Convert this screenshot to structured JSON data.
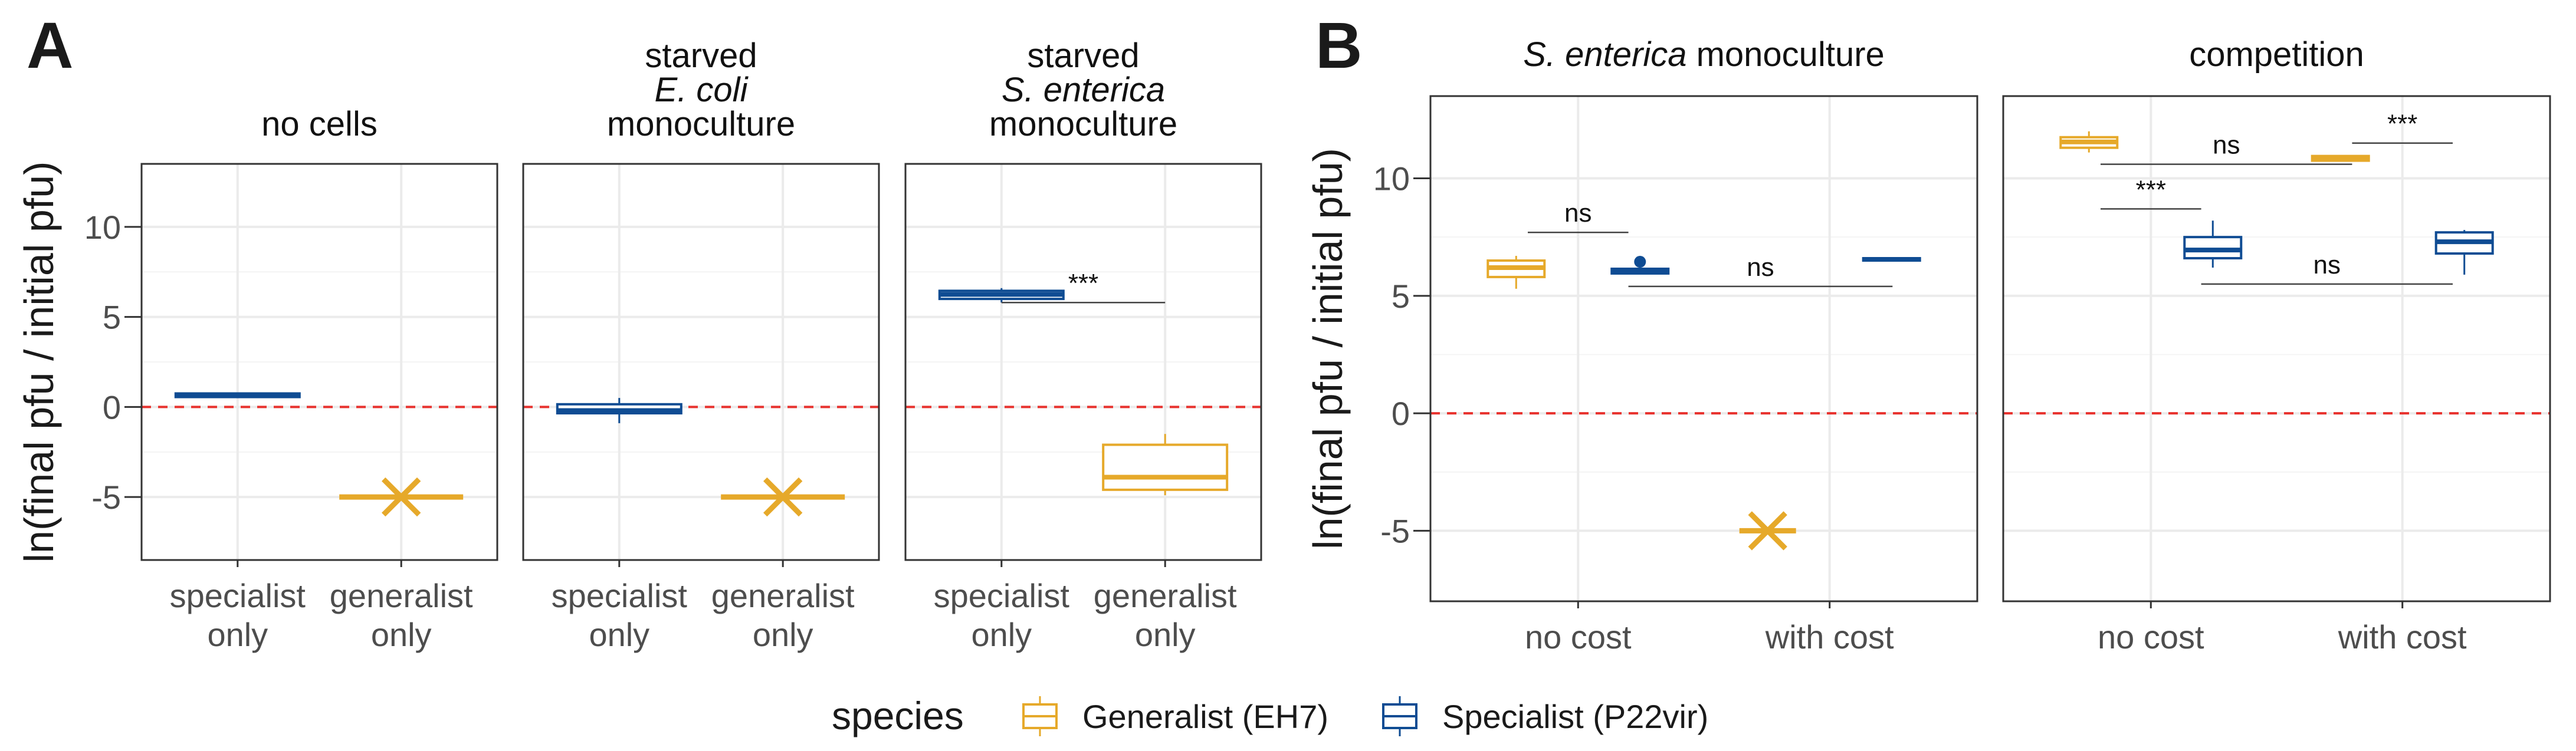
{
  "figure": {
    "panel_labels": [
      "A",
      "B"
    ],
    "ylabel": "ln(final pfu / initial pfu)",
    "legend_title": "species",
    "colors": {
      "generalist": "#E6A92A",
      "specialist": "#0F4C93",
      "baseline": "#E8322E",
      "grid": "#EBEBEB",
      "frame": "#333333"
    },
    "legend": [
      {
        "name": "Generalist (EH7)",
        "color": "#E6A92A",
        "icon": "boxplot-key"
      },
      {
        "name": "Specialist (P22vir)",
        "color": "#0F4C93",
        "icon": "boxplot-key"
      }
    ]
  },
  "chart_data": [
    {
      "type": "boxplot",
      "panel": "A",
      "facets": [
        {
          "strip": [
            "no cells"
          ],
          "italic_line": -1
        },
        {
          "strip": [
            "starved",
            "E. coli",
            "monoculture"
          ],
          "italic_line": 1
        },
        {
          "strip": [
            "starved",
            "S. enterica",
            "monoculture"
          ],
          "italic_line": 1
        }
      ],
      "categories": [
        [
          "specialist",
          "only"
        ],
        [
          "generalist",
          "only"
        ]
      ],
      "ylim": [
        -8.5,
        13.5
      ],
      "yticks": [
        -5,
        0,
        5,
        10
      ],
      "baseline": 0,
      "grid": true,
      "boxes": [
        {
          "facet": 0,
          "x": 0,
          "species": "specialist",
          "q1": 0.55,
          "median": 0.65,
          "q3": 0.75,
          "lo": 0.55,
          "hi": 0.75
        },
        {
          "facet": 0,
          "x": 1,
          "species": "generalist",
          "q1": -5,
          "median": -5,
          "q3": -5,
          "lo": -5,
          "hi": -5,
          "marker": "x"
        },
        {
          "facet": 1,
          "x": 0,
          "species": "specialist",
          "q1": -0.35,
          "median": -0.2,
          "q3": 0.15,
          "lo": -0.9,
          "hi": 0.5
        },
        {
          "facet": 1,
          "x": 1,
          "species": "generalist",
          "q1": -5,
          "median": -5,
          "q3": -5,
          "lo": -5,
          "hi": -5,
          "marker": "x"
        },
        {
          "facet": 2,
          "x": 0,
          "species": "specialist",
          "q1": 6.0,
          "median": 6.25,
          "q3": 6.45,
          "lo": 5.8,
          "hi": 6.6
        },
        {
          "facet": 2,
          "x": 1,
          "species": "generalist",
          "q1": -4.6,
          "median": -3.9,
          "q3": -2.1,
          "lo": -4.9,
          "hi": -1.5
        }
      ],
      "annotations": [
        {
          "facet": 2,
          "label": "***",
          "x1": 0,
          "x2": 1,
          "y": 5.8
        }
      ]
    },
    {
      "type": "boxplot",
      "panel": "B",
      "facets": [
        {
          "strip": [
            "S. enterica monoculture"
          ],
          "italic_prefix": "S. enterica",
          "plain_suffix": " monoculture"
        },
        {
          "strip": [
            "competition"
          ]
        }
      ],
      "categories": [
        [
          "no cost"
        ],
        [
          "with cost"
        ]
      ],
      "ylim": [
        -8,
        13.5
      ],
      "yticks": [
        -5,
        0,
        5,
        10
      ],
      "baseline": 0,
      "grid": true,
      "boxes": [
        {
          "facet": 0,
          "x": 0,
          "species": "generalist",
          "q1": 5.8,
          "median": 6.2,
          "q3": 6.5,
          "lo": 5.3,
          "hi": 6.7
        },
        {
          "facet": 0,
          "x": 0,
          "species": "specialist",
          "q1": 5.95,
          "median": 6.05,
          "q3": 6.15,
          "lo": 5.95,
          "hi": 6.15,
          "outliers": [
            6.45
          ]
        },
        {
          "facet": 0,
          "x": 1,
          "species": "generalist",
          "q1": -5,
          "median": -5,
          "q3": -5,
          "lo": -5,
          "hi": -5,
          "marker": "x"
        },
        {
          "facet": 0,
          "x": 1,
          "species": "specialist",
          "q1": 6.5,
          "median": 6.55,
          "q3": 6.6,
          "lo": 6.5,
          "hi": 6.6
        },
        {
          "facet": 1,
          "x": 0,
          "species": "generalist",
          "q1": 11.3,
          "median": 11.55,
          "q3": 11.75,
          "lo": 11.1,
          "hi": 12.0
        },
        {
          "facet": 1,
          "x": 0,
          "species": "specialist",
          "q1": 6.6,
          "median": 6.95,
          "q3": 7.5,
          "lo": 6.2,
          "hi": 8.2
        },
        {
          "facet": 1,
          "x": 1,
          "species": "generalist",
          "q1": 10.75,
          "median": 10.85,
          "q3": 10.95,
          "lo": 10.75,
          "hi": 10.95
        },
        {
          "facet": 1,
          "x": 1,
          "species": "specialist",
          "q1": 6.8,
          "median": 7.3,
          "q3": 7.7,
          "lo": 5.9,
          "hi": 7.8
        }
      ],
      "annotations": [
        {
          "facet": 0,
          "label": "ns",
          "x1": -0.2,
          "x2": 0.2,
          "y": 7.7
        },
        {
          "facet": 0,
          "label": "ns",
          "x1": 0.2,
          "x2": 1.25,
          "y": 5.4
        },
        {
          "facet": 1,
          "label": "ns",
          "x1": -0.2,
          "x2": 0.8,
          "y": 10.6
        },
        {
          "facet": 1,
          "label": "***",
          "x1": -0.2,
          "x2": 0.2,
          "y": 8.7
        },
        {
          "facet": 1,
          "label": "***",
          "x1": 0.8,
          "x2": 1.2,
          "y": 11.5
        },
        {
          "facet": 1,
          "label": "ns",
          "x1": 0.2,
          "x2": 1.2,
          "y": 5.5
        }
      ]
    }
  ]
}
